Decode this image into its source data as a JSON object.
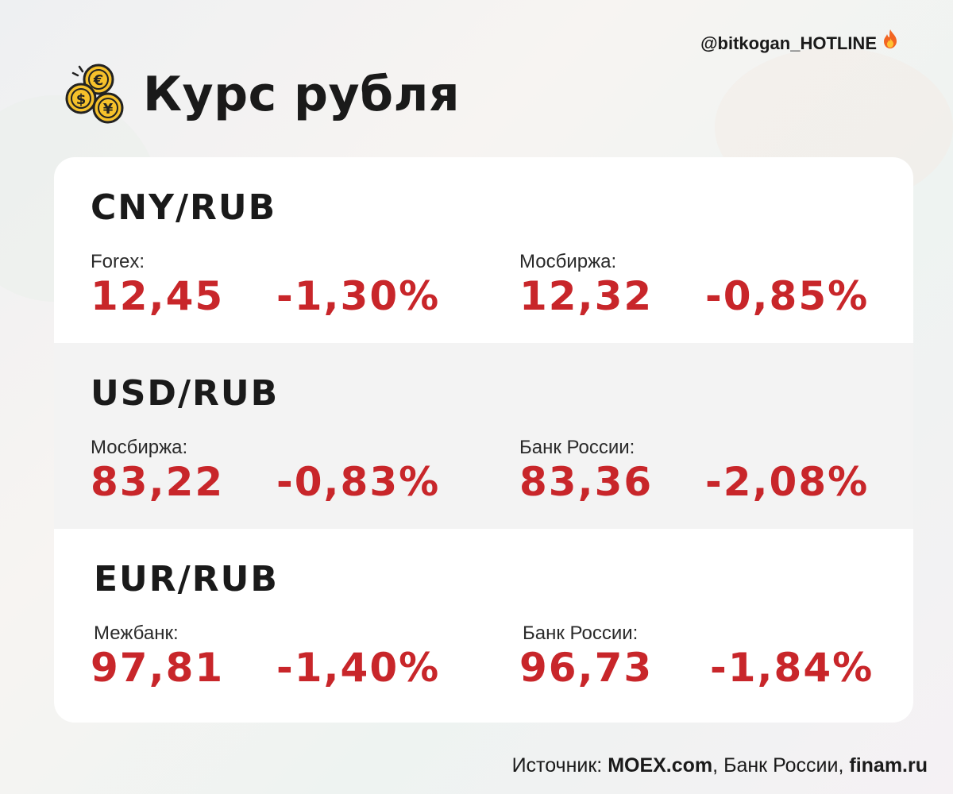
{
  "handle": "@bitkogan_HOTLINE",
  "title": "Курс рубля",
  "icons": {
    "header": "coins-icon",
    "handle": "fire-icon"
  },
  "colors": {
    "value": "#c8262a",
    "text": "#1a1a1a",
    "alt_row": "#f3f3f3"
  },
  "rows": [
    {
      "pair": "CNY/RUB",
      "left": {
        "label": "Forex:",
        "rate": "12,45",
        "change": "-1,30%"
      },
      "right": {
        "label": "Мосбиржа:",
        "rate": "12,32",
        "change": "-0,85%"
      }
    },
    {
      "pair": "USD/RUB",
      "left": {
        "label": "Мосбиржа:",
        "rate": "83,22",
        "change": "-0,83%"
      },
      "right": {
        "label": "Банк России:",
        "rate": "83,36",
        "change": "-2,08%"
      }
    },
    {
      "pair": "EUR/RUB",
      "left": {
        "label": "Межбанк:",
        "rate": "97,81",
        "change": "-1,40%"
      },
      "right": {
        "label": "Банк России:",
        "rate": "96,73",
        "change": "-1,84%"
      }
    }
  ],
  "footer": {
    "prefix": "Источник: ",
    "source1": "MOEX.com",
    "sep1": ", Банк России, ",
    "source3": "finam.ru"
  }
}
